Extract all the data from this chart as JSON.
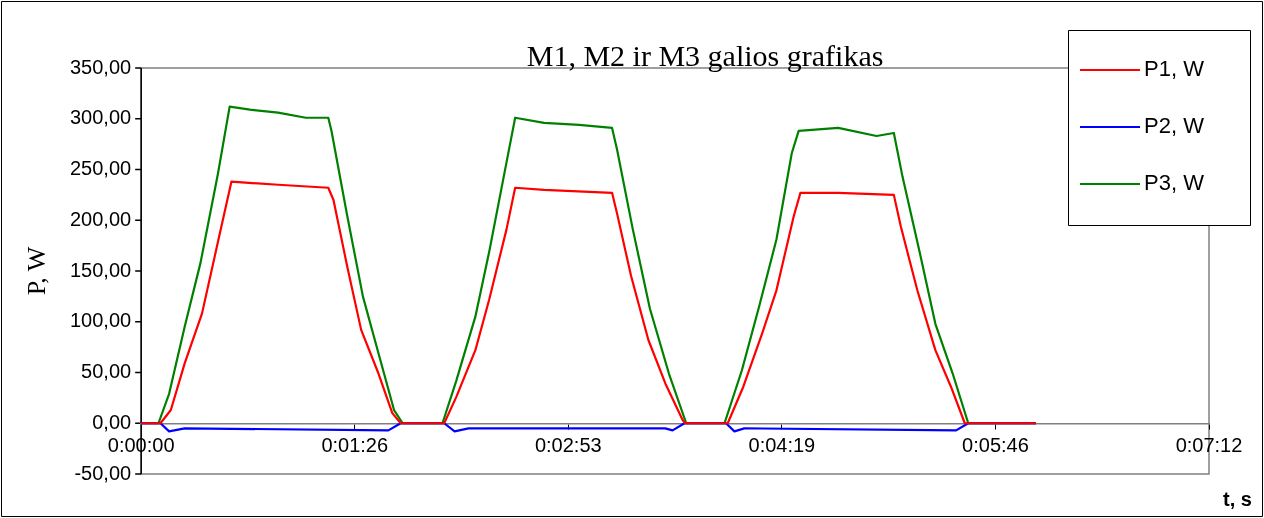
{
  "chart_data": {
    "type": "line",
    "title": "M1, M2 ir M3 galios grafikas",
    "xlabel": "t, s",
    "ylabel": "P, W",
    "xlim": [
      0,
      432
    ],
    "xticks": [
      {
        "value": 0,
        "label": "0:00:00"
      },
      {
        "value": 86.4,
        "label": "0:01:26"
      },
      {
        "value": 172.8,
        "label": "0:02:53"
      },
      {
        "value": 259.2,
        "label": "0:04:19"
      },
      {
        "value": 345.6,
        "label": "0:05:46"
      },
      {
        "value": 432,
        "label": "0:07:12"
      }
    ],
    "ylim": [
      -50,
      350
    ],
    "yticks": [
      {
        "value": -50,
        "label": "-50,00"
      },
      {
        "value": 0,
        "label": "0,00"
      },
      {
        "value": 50,
        "label": "50,00"
      },
      {
        "value": 100,
        "label": "100,00"
      },
      {
        "value": 150,
        "label": "150,00"
      },
      {
        "value": 200,
        "label": "200,00"
      },
      {
        "value": 250,
        "label": "250,00"
      },
      {
        "value": 300,
        "label": "300,00"
      },
      {
        "value": 350,
        "label": "350,00"
      }
    ],
    "grid": false,
    "legend": "right",
    "marker": "none",
    "line_style": "solid",
    "series": [
      {
        "name": "P1, W",
        "color": "#ff0000",
        "x": [
          0,
          7.8,
          12,
          17.6,
          24.6,
          31,
          36.5,
          55.4,
          75.7,
          77.8,
          83.4,
          89,
          96,
          101.6,
          105,
          121,
          122.6,
          127.5,
          135.2,
          140.8,
          147.8,
          151.3,
          163,
          190.5,
          192.5,
          198.2,
          205.2,
          212.1,
          219.1,
          220,
          236,
          237.3,
          243.6,
          251.3,
          257,
          264,
          266.7,
          282,
          304.5,
          307.3,
          314,
          321.3,
          327.6,
          333.2,
          362
        ],
        "values": [
          0,
          0,
          13,
          59,
          108,
          178,
          238,
          235,
          232,
          220,
          154,
          92,
          49,
          10,
          0,
          0,
          0,
          26,
          72,
          122,
          191,
          232,
          230,
          227,
          207,
          145,
          82,
          39,
          3,
          0,
          0,
          0,
          36,
          89,
          131,
          204,
          227,
          227,
          225,
          194,
          131,
          72,
          36,
          0,
          0
        ]
      },
      {
        "name": "P2, W",
        "color": "#0000ff",
        "x": [
          0,
          7.8,
          11.3,
          17.6,
          100,
          105,
          122.6,
          126.8,
          132.4,
          212,
          215,
          219.8,
          236.6,
          240,
          244,
          329.7,
          334.6,
          362
        ],
        "values": [
          0,
          0,
          -8,
          -5,
          -7,
          0,
          0,
          -8,
          -5,
          -5,
          -7,
          0,
          0,
          -8,
          -5,
          -7,
          0,
          0
        ]
      },
      {
        "name": "P3, W",
        "color": "#008000",
        "x": [
          0,
          7,
          11.3,
          17.6,
          24,
          31,
          35.8,
          44,
          55.4,
          66.6,
          75.7,
          77,
          83.4,
          89.7,
          96,
          102.3,
          105.8,
          121.9,
          127.5,
          135.2,
          140.8,
          147.8,
          151.3,
          163,
          177.2,
          190.5,
          192.5,
          198.9,
          205.8,
          213.5,
          220.5,
          236,
          243,
          250,
          257,
          263.2,
          266,
          282,
          297.5,
          304.5,
          308,
          315,
          321.3,
          328.3,
          334.6,
          362
        ],
        "values": [
          0,
          0,
          29,
          95,
          158,
          245,
          312,
          309,
          306,
          301,
          301,
          288,
          204,
          125,
          69,
          13,
          0,
          0,
          42,
          105,
          169,
          257,
          301,
          296,
          294,
          291,
          270,
          191,
          113,
          49,
          0,
          0,
          52,
          115,
          181,
          266,
          288,
          291,
          283,
          286,
          243,
          168,
          98,
          49,
          0,
          0
        ]
      }
    ]
  }
}
